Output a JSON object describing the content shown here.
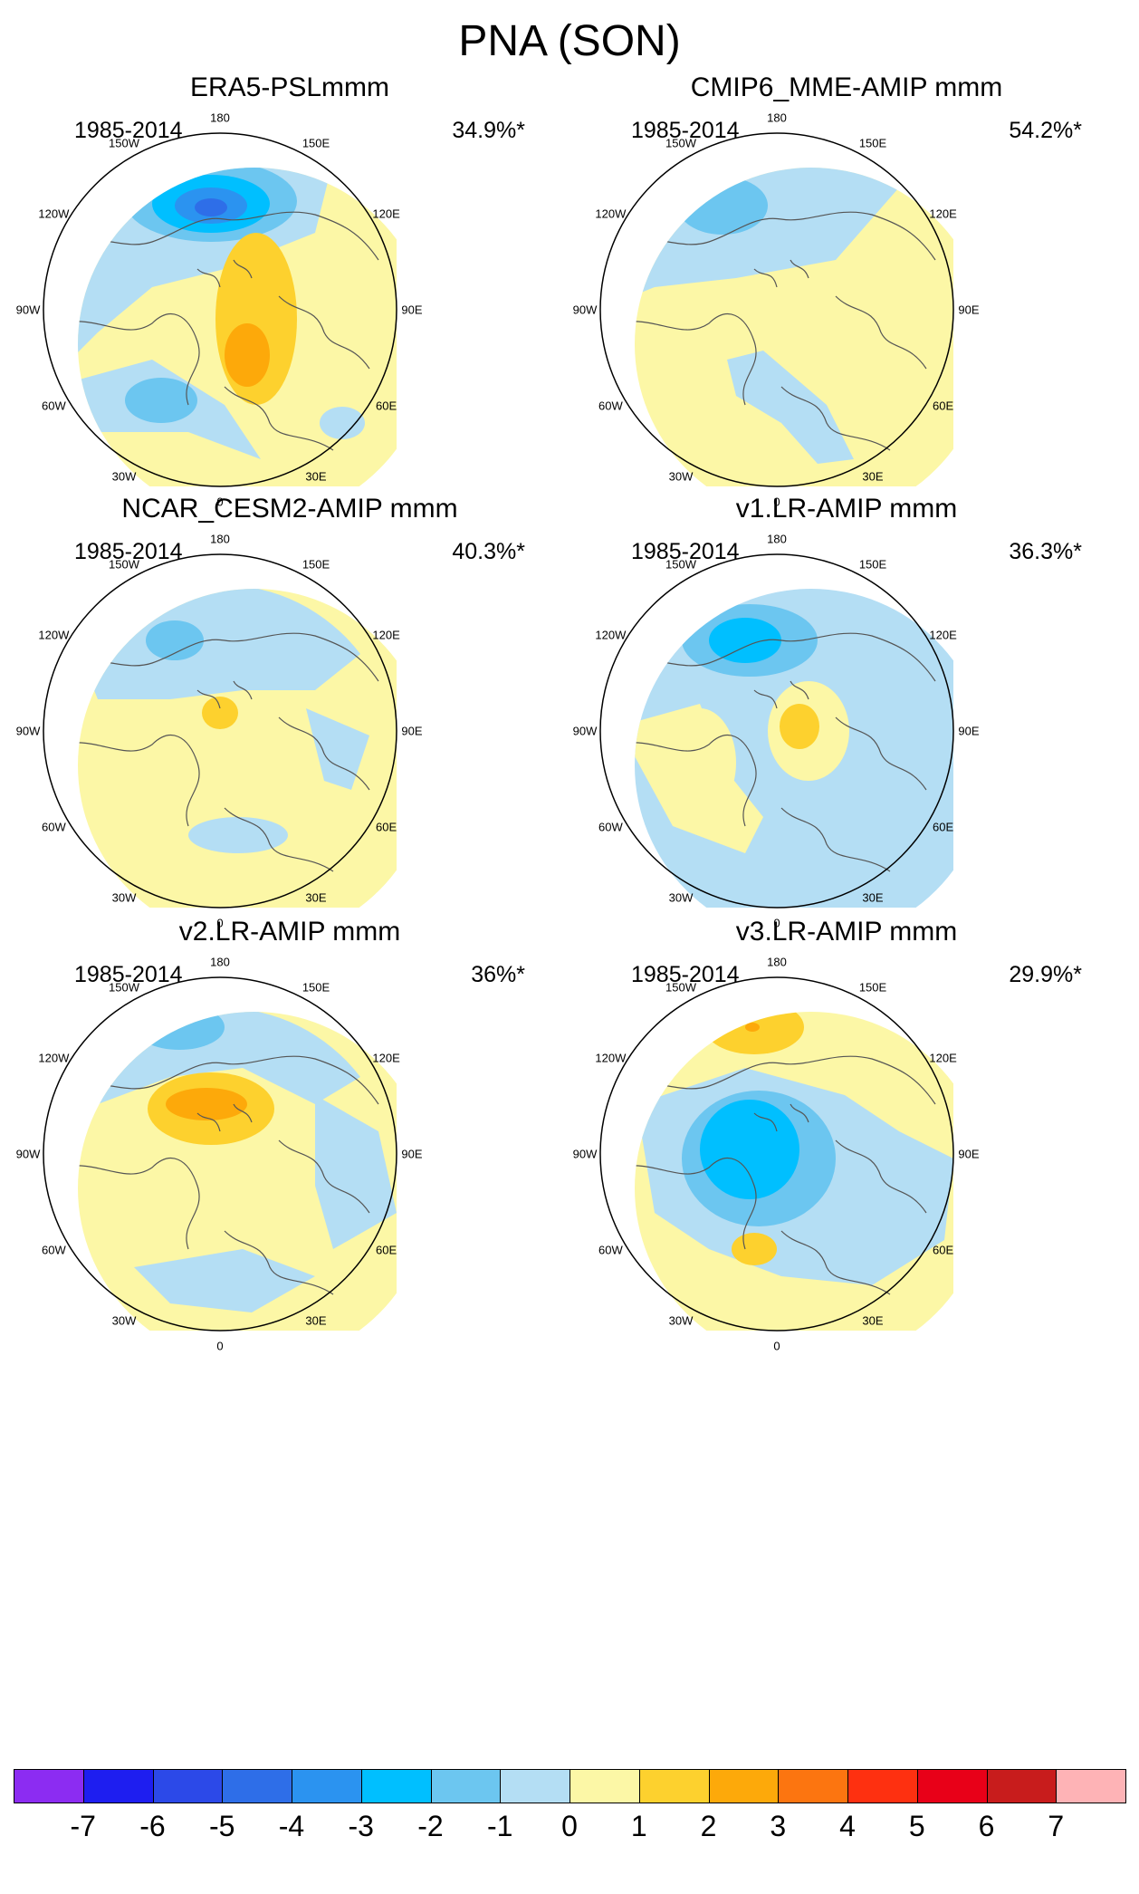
{
  "figure": {
    "title": "PNA (SON)"
  },
  "longitude_labels": [
    "180",
    "150E",
    "120E",
    "90E",
    "60E",
    "30E",
    "0",
    "30W",
    "60W",
    "90W",
    "120W",
    "150W"
  ],
  "panels": [
    {
      "title": "ERA5-PSLmmm",
      "period": "1985-2014",
      "variance": "34.9%*",
      "pattern": "era5"
    },
    {
      "title": "CMIP6_MME-AMIP  mmm",
      "period": "1985-2014",
      "variance": "54.2%*",
      "pattern": "cmip6"
    },
    {
      "title": "NCAR_CESM2-AMIP  mmm",
      "period": "1985-2014",
      "variance": "40.3%*",
      "pattern": "cesm2"
    },
    {
      "title": "v1.LR-AMIP  mmm",
      "period": "1985-2014",
      "variance": "36.3%*",
      "pattern": "v1"
    },
    {
      "title": "v2.LR-AMIP  mmm",
      "period": "1985-2014",
      "variance": "36%*",
      "pattern": "v2"
    },
    {
      "title": "v3.LR-AMIP  mmm",
      "period": "1985-2014",
      "variance": "29.9%*",
      "pattern": "v3"
    }
  ],
  "colorbar": {
    "labels": [
      "-7",
      "-6",
      "-5",
      "-4",
      "-3",
      "-2",
      "-1",
      "0",
      "1",
      "2",
      "3",
      "4",
      "5",
      "6",
      "7"
    ],
    "colors": [
      "#8c2cf2",
      "#1e1ef0",
      "#2c49e8",
      "#2e6ee8",
      "#2b93f0",
      "#00bfff",
      "#6cc6f0",
      "#b4def4",
      "#fcf7a6",
      "#fdd12e",
      "#fda90a",
      "#fc7510",
      "#fe3010",
      "#e80018",
      "#c81c1c",
      "#feb3b6"
    ]
  },
  "chart_data": {
    "type": "heatmap",
    "title": "PNA (SON)",
    "description_units": "contour levels",
    "levels": [
      -7,
      -6,
      -5,
      -4,
      -3,
      -2,
      -1,
      0,
      1,
      2,
      3,
      4,
      5,
      6,
      7
    ],
    "panels": [
      "ERA5-PSLmmm",
      "CMIP6_MME-AMIP  mmm",
      "NCAR_CESM2-AMIP  mmm",
      "v1.LR-AMIP  mmm",
      "v2.LR-AMIP  mmm",
      "v3.LR-AMIP  mmm"
    ]
  }
}
